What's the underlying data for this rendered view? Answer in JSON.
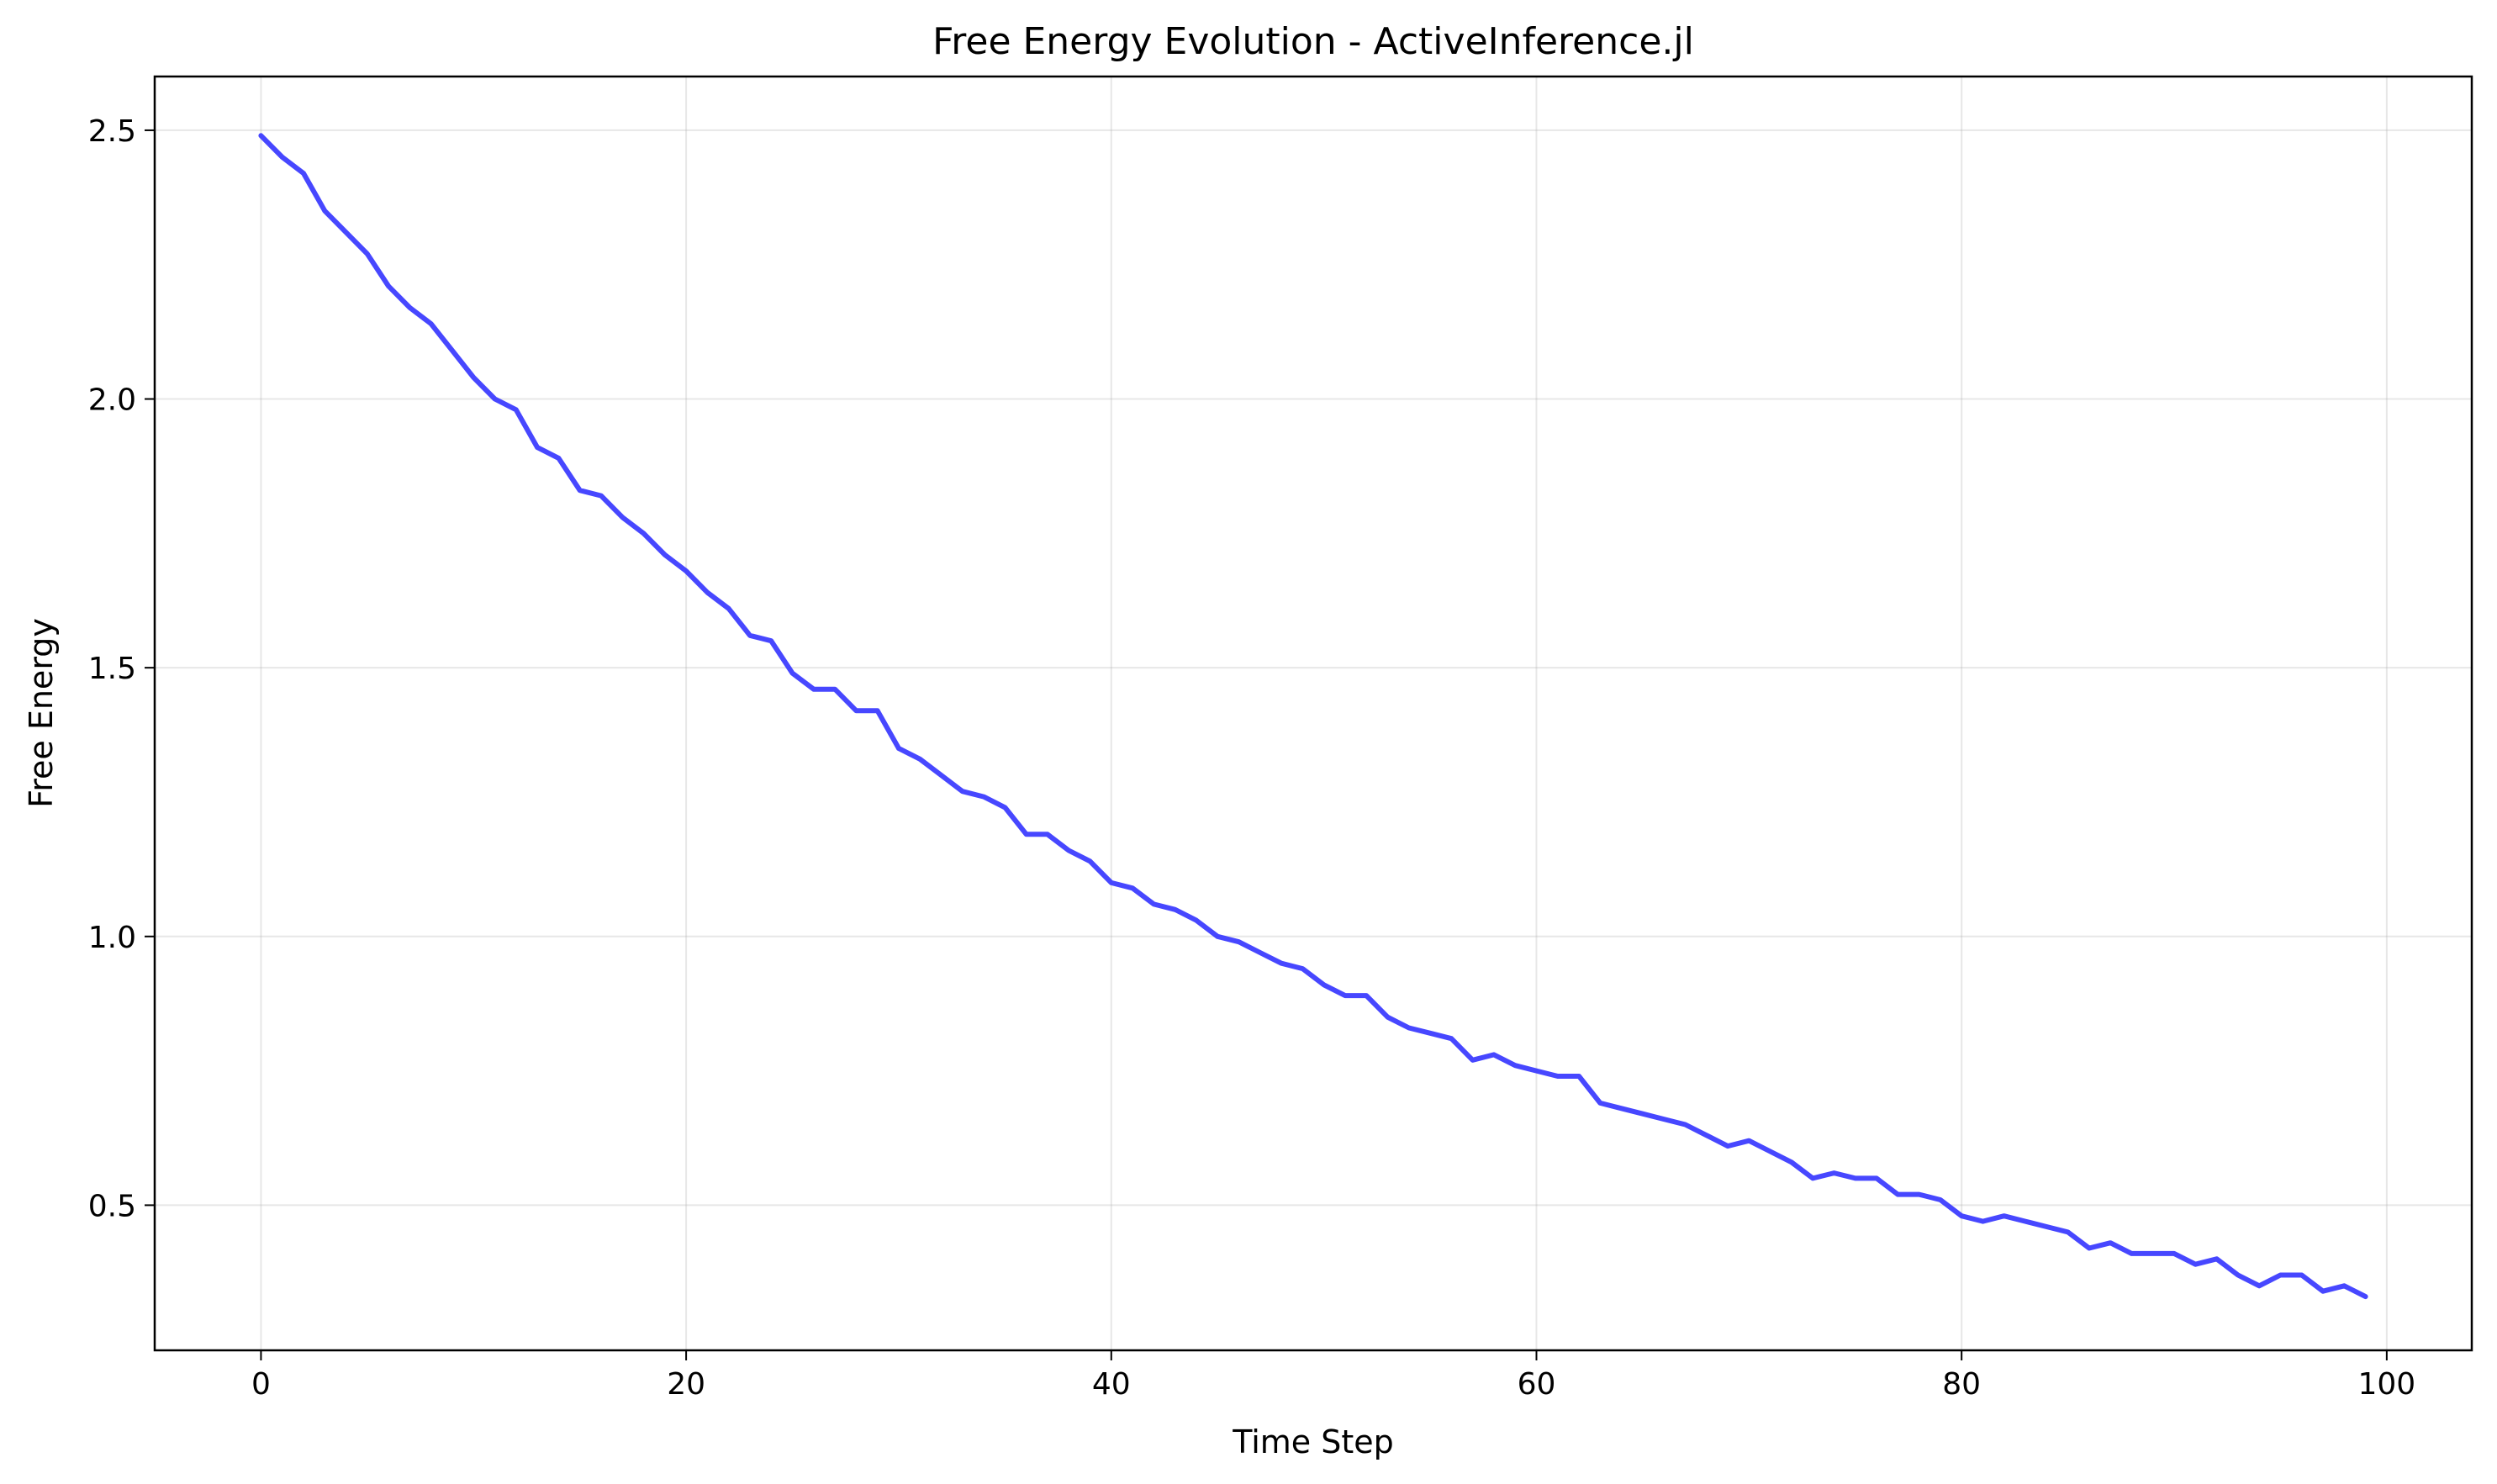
{
  "chart_data": {
    "type": "line",
    "title": "Free Energy Evolution - ActiveInference.jl",
    "xlabel": "Time Step",
    "ylabel": "Free Energy",
    "xlim": [
      -5,
      104
    ],
    "ylim": [
      0.23,
      2.6
    ],
    "grid": true,
    "x_ticks": [
      0,
      20,
      40,
      60,
      80,
      100
    ],
    "y_ticks": [
      0.5,
      1.0,
      1.5,
      2.0,
      2.5
    ],
    "x_tick_labels": [
      "0",
      "20",
      "40",
      "60",
      "80",
      "100"
    ],
    "y_tick_labels": [
      "0.5",
      "1.0",
      "1.5",
      "2.0",
      "2.5"
    ],
    "series": [
      {
        "color": "#3333ff",
        "x": [
          0,
          1,
          2,
          3,
          4,
          5,
          6,
          7,
          8,
          9,
          10,
          11,
          12,
          13,
          14,
          15,
          16,
          17,
          18,
          19,
          20,
          21,
          22,
          23,
          24,
          25,
          26,
          27,
          28,
          29,
          30,
          31,
          32,
          33,
          34,
          35,
          36,
          37,
          38,
          39,
          40,
          41,
          42,
          43,
          44,
          45,
          46,
          47,
          48,
          49,
          50,
          51,
          52,
          53,
          54,
          55,
          56,
          57,
          58,
          59,
          60,
          61,
          62,
          63,
          64,
          65,
          66,
          67,
          68,
          69,
          70,
          71,
          72,
          73,
          74,
          75,
          76,
          77,
          78,
          79,
          80,
          81,
          82,
          83,
          84,
          85,
          86,
          87,
          88,
          89,
          90,
          91,
          92,
          93,
          94,
          95,
          96,
          97,
          98,
          99
        ],
        "values": [
          2.49,
          2.45,
          2.42,
          2.35,
          2.31,
          2.27,
          2.21,
          2.17,
          2.14,
          2.09,
          2.04,
          2.0,
          1.98,
          1.91,
          1.89,
          1.83,
          1.82,
          1.78,
          1.75,
          1.71,
          1.68,
          1.64,
          1.61,
          1.56,
          1.55,
          1.49,
          1.46,
          1.46,
          1.42,
          1.42,
          1.35,
          1.33,
          1.3,
          1.27,
          1.26,
          1.24,
          1.19,
          1.19,
          1.16,
          1.14,
          1.1,
          1.09,
          1.06,
          1.05,
          1.03,
          1.0,
          0.99,
          0.97,
          0.95,
          0.94,
          0.91,
          0.89,
          0.89,
          0.85,
          0.83,
          0.82,
          0.81,
          0.77,
          0.78,
          0.76,
          0.75,
          0.74,
          0.74,
          0.69,
          0.68,
          0.67,
          0.66,
          0.65,
          0.63,
          0.61,
          0.62,
          0.6,
          0.58,
          0.55,
          0.56,
          0.55,
          0.55,
          0.52,
          0.52,
          0.51,
          0.48,
          0.47,
          0.48,
          0.47,
          0.46,
          0.45,
          0.42,
          0.43,
          0.41,
          0.41,
          0.41,
          0.39,
          0.4,
          0.37,
          0.35,
          0.37,
          0.37,
          0.34,
          0.35,
          0.33
        ]
      }
    ]
  }
}
